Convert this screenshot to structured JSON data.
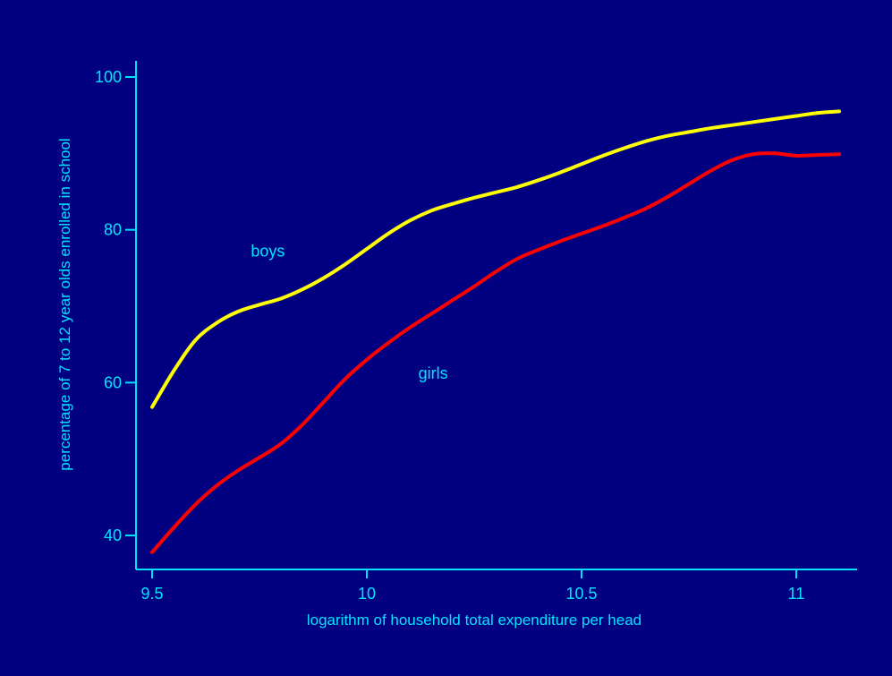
{
  "colors": {
    "background": "#000080",
    "axis": "#00e5ff",
    "boys": "#ffff00",
    "girls": "#ff0000"
  },
  "chart_data": {
    "type": "line",
    "title": "",
    "xlabel": "logarithm of household total expenditure per head",
    "ylabel": "percentage of 7 to 12 year olds enrolled in school",
    "xlim": [
      9.5,
      11.1
    ],
    "ylim": [
      36,
      102
    ],
    "xticks": [
      9.5,
      10,
      10.5,
      11
    ],
    "xtick_labels": [
      "9.5",
      "10",
      "10.5",
      "11"
    ],
    "yticks": [
      40,
      60,
      80,
      100
    ],
    "ytick_labels": [
      "40",
      "60",
      "80",
      "100"
    ],
    "grid": false,
    "series": [
      {
        "name": "boys",
        "color": "#ffff00",
        "x": [
          9.5,
          9.55,
          9.6,
          9.65,
          9.7,
          9.75,
          9.8,
          9.85,
          9.9,
          9.95,
          10.0,
          10.05,
          10.1,
          10.15,
          10.2,
          10.25,
          10.3,
          10.35,
          10.4,
          10.45,
          10.5,
          10.55,
          10.6,
          10.65,
          10.7,
          10.75,
          10.8,
          10.85,
          10.9,
          10.95,
          11.0,
          11.05,
          11.1
        ],
        "y": [
          56.8,
          61.5,
          65.5,
          67.8,
          69.3,
          70.2,
          71.0,
          72.2,
          73.7,
          75.5,
          77.5,
          79.5,
          81.2,
          82.5,
          83.4,
          84.2,
          84.9,
          85.6,
          86.5,
          87.5,
          88.6,
          89.7,
          90.7,
          91.6,
          92.3,
          92.8,
          93.3,
          93.7,
          94.1,
          94.5,
          94.9,
          95.3,
          95.5
        ]
      },
      {
        "name": "girls",
        "color": "#ff0000",
        "x": [
          9.5,
          9.55,
          9.6,
          9.65,
          9.7,
          9.75,
          9.8,
          9.85,
          9.9,
          9.95,
          10.0,
          10.05,
          10.1,
          10.15,
          10.2,
          10.25,
          10.3,
          10.35,
          10.4,
          10.45,
          10.5,
          10.55,
          10.6,
          10.65,
          10.7,
          10.75,
          10.8,
          10.85,
          10.9,
          10.95,
          11.0,
          11.05,
          11.1
        ],
        "y": [
          37.8,
          41.0,
          44.0,
          46.5,
          48.5,
          50.2,
          52.0,
          54.5,
          57.5,
          60.5,
          63.0,
          65.2,
          67.2,
          69.0,
          70.8,
          72.6,
          74.5,
          76.2,
          77.4,
          78.5,
          79.5,
          80.5,
          81.6,
          82.8,
          84.3,
          86.0,
          87.7,
          89.1,
          89.9,
          90.0,
          89.7,
          89.8,
          89.9
        ]
      }
    ],
    "annotations": [
      {
        "text": "boys",
        "x": 9.73,
        "y": 76.5
      },
      {
        "text": "girls",
        "x": 10.12,
        "y": 60.5
      }
    ]
  }
}
